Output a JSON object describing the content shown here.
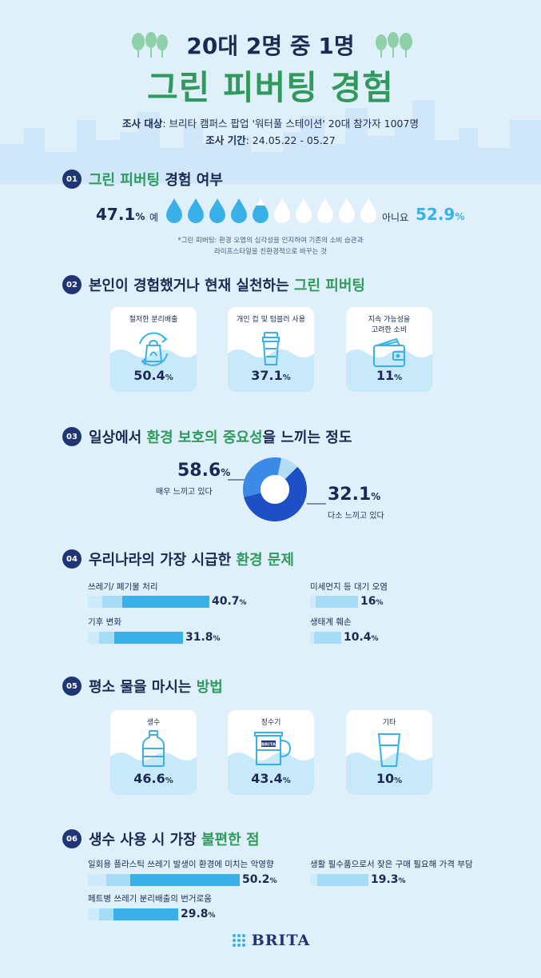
{
  "header": {
    "title_line1": "20대 2명 중 1명",
    "title_line2": "그린 피버팅 경험",
    "survey_target_label": "조사 대상",
    "survey_target_value": ": 브리타 캠퍼스 팝업 '워터풀 스테이션' 20대 참가자 1007명",
    "survey_period_label": "조사 기간",
    "survey_period_value": ": 24.05.22 - 05.27"
  },
  "colors": {
    "navy": "#1f3576",
    "green": "#2f9a5c",
    "blue": "#3ab0e8",
    "light_blue": "#a7dcf6",
    "bg": "#dff0fb"
  },
  "sections": [
    {
      "num": "01",
      "title_a": "그린 피버팅",
      "title_b": " 경험 여부"
    },
    {
      "num": "02",
      "title_a": "본인이 경험했거나 현재 실천하는 ",
      "title_b": "그린 피버팅"
    },
    {
      "num": "03",
      "title_a": "일상에서 ",
      "title_b": "환경 보호의 중요성",
      "title_c": "을 느끼는 정도"
    },
    {
      "num": "04",
      "title_a": "우리나라의 가장 시급한 ",
      "title_b": "환경 문제"
    },
    {
      "num": "05",
      "title_a": "평소 물을 마시는 ",
      "title_b": "방법"
    },
    {
      "num": "06",
      "title_a": "생수 사용 시 가장 ",
      "title_b": "불편한 점"
    }
  ],
  "chart_data": [
    {
      "type": "pictogram",
      "categories": [
        "예",
        "아니요"
      ],
      "values": [
        47.1,
        52.9
      ],
      "value_labels": [
        "47.1",
        "52.9"
      ],
      "unit": "%",
      "note_line1": "*그린 피버팅: 환경 오염의 심각성을 인지하여 기존의 소비 습관과",
      "note_line2": "라이프스타일을 친환경적으로 바꾸는 것"
    },
    {
      "type": "bar",
      "categories": [
        "철저한 분리배출",
        "개인 컵 및 텀블러 사용",
        "지속 가능성을 고려한 소비"
      ],
      "category_lines": [
        [
          "철저한 분리배출"
        ],
        [
          "개인 컵 및 텀블러 사용"
        ],
        [
          "지속 가능성을",
          "고려한 소비"
        ]
      ],
      "values": [
        50.4,
        37.1,
        11
      ],
      "value_labels": [
        "50.4",
        "37.1",
        "11"
      ],
      "icons": [
        "recycle-bag-icon",
        "tumbler-icon",
        "wallet-icon"
      ],
      "unit": "%"
    },
    {
      "type": "pie",
      "categories": [
        "매우 느끼고 있다",
        "다소 느끼고 있다"
      ],
      "values": [
        58.6,
        32.1
      ],
      "value_labels": [
        "58.6",
        "32.1"
      ],
      "colors": [
        "#1f4fc4",
        "#3a8ae6"
      ],
      "unit": "%"
    },
    {
      "type": "bar",
      "categories": [
        "쓰레기/ 폐기물 처리",
        "기후 변화",
        "미세먼지 등 대기 오염",
        "생태계 훼손"
      ],
      "values": [
        40.7,
        31.8,
        16,
        10.4
      ],
      "value_labels": [
        "40.7",
        "31.8",
        "16",
        "10.4"
      ],
      "unit": "%"
    },
    {
      "type": "bar",
      "categories": [
        "생수",
        "정수기",
        "기타"
      ],
      "values": [
        46.6,
        43.4,
        10
      ],
      "value_labels": [
        "46.6",
        "43.4",
        "10"
      ],
      "icons": [
        "water-bottle-icon",
        "filter-pitcher-icon",
        "glass-icon"
      ],
      "unit": "%"
    },
    {
      "type": "bar",
      "categories": [
        "일회용 플라스틱 쓰레기 발생이 환경에 미치는 악영향",
        "페트병 쓰레기 분리배출의 번거로움",
        "생활 필수품으로서 잦은 구매 필요해 가격 부담"
      ],
      "values": [
        50.2,
        29.8,
        19.3
      ],
      "value_labels": [
        "50.2",
        "29.8",
        "19.3"
      ],
      "unit": "%"
    }
  ],
  "footer": {
    "brand": "BRITA"
  }
}
